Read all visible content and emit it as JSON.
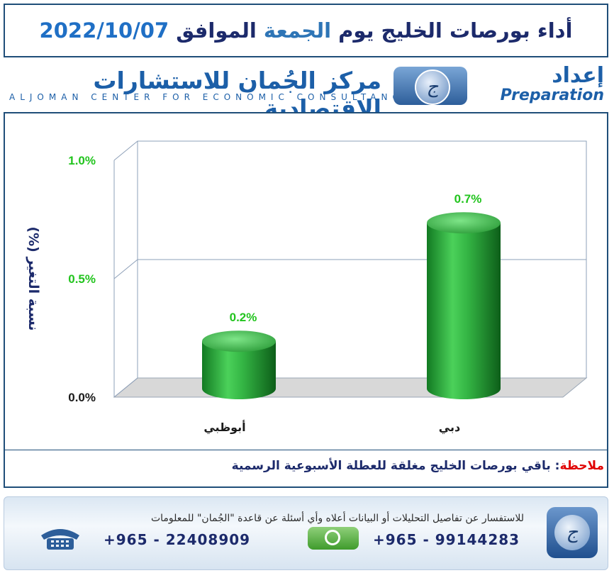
{
  "header": {
    "title_prefix": "أداء بورصات الخليج يوم",
    "title_day": "الجمعة",
    "title_mid": "الموافق",
    "title_date": "2022/10/07"
  },
  "logo": {
    "arabic_name": "مركز الجُمان للاستشارات الاقتصادية",
    "english_name": "ALJOMAN CENTER FOR ECONOMIC CONSULTANCY",
    "prep_ar": "إعداد",
    "prep_en": "Preparation",
    "monogram": "ج"
  },
  "chart_data": {
    "type": "bar",
    "categories": [
      "أبوظبي",
      "دبي"
    ],
    "values": [
      0.2,
      0.7
    ],
    "value_labels": [
      "0.2%",
      "0.7%"
    ],
    "ylabel": "نسبة التغير (%)",
    "yticks": [
      "0.0%",
      "0.5%",
      "1.0%"
    ],
    "ylim": [
      0,
      1.0
    ],
    "grid": true,
    "bar_color": "#2ea043",
    "label_color": "#22c41e"
  },
  "note": {
    "label": "ملاحظة",
    "text": "باقي بورصات الخليج مغلقة للعطلة الأسبوعية الرسمية"
  },
  "footer": {
    "info": "للاستفسار عن تفاصيل التحليلات أو البيانات أعلاه وأي أسئلة عن قاعدة \"الجُمان\" للمعلومات",
    "whatsapp_number": "+965 - 99144283",
    "phone_number": "+965 - 22408909"
  }
}
